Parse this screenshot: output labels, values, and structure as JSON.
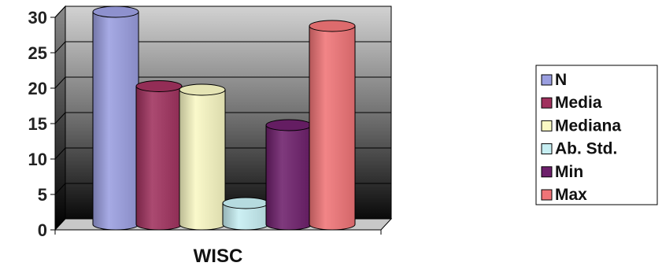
{
  "chart_data": {
    "type": "bar",
    "style": "3d-cylinder",
    "categories": [
      "WISC"
    ],
    "series": [
      {
        "name": "N",
        "values": [
          30
        ],
        "color": "#9a9ee0"
      },
      {
        "name": "Media",
        "values": [
          19.5
        ],
        "color": "#a0315e"
      },
      {
        "name": "Mediana",
        "values": [
          19
        ],
        "color": "#f9f8c4"
      },
      {
        "name": "Ab. Std.",
        "values": [
          3
        ],
        "color": "#c6eef2"
      },
      {
        "name": "Min",
        "values": [
          14
        ],
        "color": "#6d1f6b"
      },
      {
        "name": "Max",
        "values": [
          28
        ],
        "color": "#f07477"
      }
    ],
    "ylim": [
      0,
      30
    ],
    "yticks": [
      "0",
      "5",
      "10",
      "15",
      "20",
      "25",
      "30"
    ],
    "grid": true,
    "legend_position": "right",
    "title": "",
    "xlabel": "",
    "ylabel": ""
  }
}
